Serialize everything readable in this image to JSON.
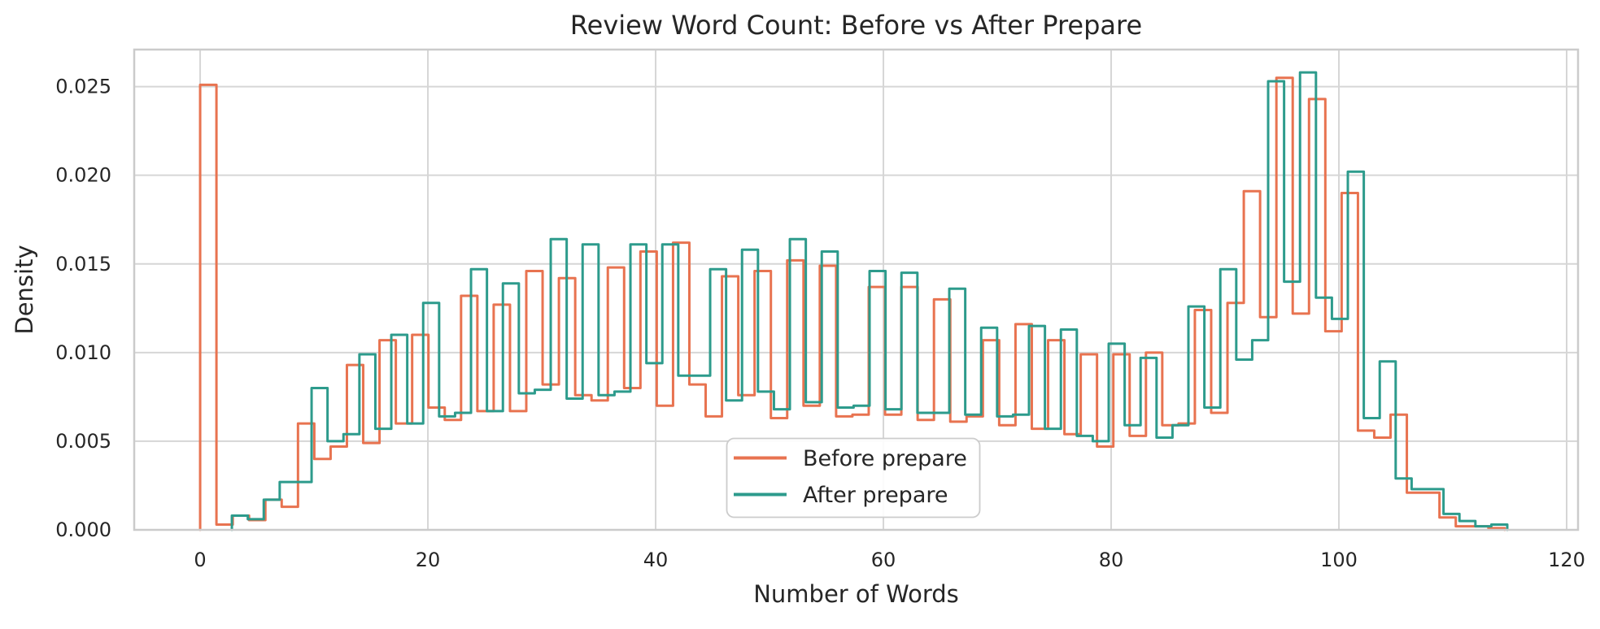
{
  "figure": {
    "title": "Review Word Count: Before vs After Prepare",
    "xlabel": "Number of Words",
    "ylabel": "Density",
    "text_color": "#262626",
    "grid_color": "#d6d6d6",
    "spine_color": "#cbcbcb",
    "background": "#ffffff"
  },
  "chart_data": {
    "type": "step-histogram",
    "title": "Review Word Count: Before vs After Prepare",
    "xlabel": "Number of Words",
    "ylabel": "Density",
    "xlim": [
      -5.79,
      121.0
    ],
    "ylim": [
      0,
      0.02709
    ],
    "grid": true,
    "xticks": [
      {
        "v": 0,
        "label": "0"
      },
      {
        "v": 20,
        "label": "20"
      },
      {
        "v": 40,
        "label": "40"
      },
      {
        "v": 60,
        "label": "60"
      },
      {
        "v": 80,
        "label": "80"
      },
      {
        "v": 100,
        "label": "100"
      },
      {
        "v": 120,
        "label": "120"
      }
    ],
    "yticks": [
      {
        "v": 0.0,
        "label": "0.000"
      },
      {
        "v": 0.005,
        "label": "0.005"
      },
      {
        "v": 0.01,
        "label": "0.010"
      },
      {
        "v": 0.015,
        "label": "0.015"
      },
      {
        "v": 0.02,
        "label": "0.020"
      },
      {
        "v": 0.025,
        "label": "0.025"
      }
    ],
    "legend": {
      "entries": [
        {
          "label": "Before prepare",
          "color": "#E87350"
        },
        {
          "label": "After prepare",
          "color": "#2D9B8C"
        }
      ]
    },
    "series": [
      {
        "name": "Before prepare",
        "color": "#E87350",
        "bin_start": 0.0,
        "bin_width": 1.432,
        "values": [
          0.0251,
          0.0003,
          0.0008,
          0.00055,
          0.0017,
          0.0013,
          0.006,
          0.004,
          0.0047,
          0.0093,
          0.0049,
          0.0107,
          0.006,
          0.011,
          0.0069,
          0.0062,
          0.0132,
          0.0067,
          0.0127,
          0.0067,
          0.0146,
          0.0082,
          0.0142,
          0.0076,
          0.0073,
          0.0148,
          0.008,
          0.0157,
          0.007,
          0.0162,
          0.0082,
          0.0064,
          0.0143,
          0.0076,
          0.0146,
          0.0063,
          0.0152,
          0.007,
          0.0149,
          0.0064,
          0.0065,
          0.0137,
          0.0065,
          0.0137,
          0.0062,
          0.013,
          0.0061,
          0.0064,
          0.0107,
          0.0059,
          0.0116,
          0.0057,
          0.0107,
          0.0054,
          0.0099,
          0.0047,
          0.0099,
          0.0053,
          0.01,
          0.0059,
          0.006,
          0.0124,
          0.0066,
          0.0128,
          0.0191,
          0.012,
          0.0255,
          0.0122,
          0.0243,
          0.0112,
          0.019,
          0.0056,
          0.0052,
          0.0065,
          0.0021,
          0.0021,
          0.0007,
          0.0002,
          0.0002,
          0.0001
        ]
      },
      {
        "name": "After prepare",
        "color": "#2D9B8C",
        "bin_start": 2.786,
        "bin_width": 1.4,
        "values": [
          0.0008,
          0.0006,
          0.0017,
          0.0027,
          0.0027,
          0.008,
          0.005,
          0.0054,
          0.0099,
          0.0057,
          0.011,
          0.006,
          0.0128,
          0.0064,
          0.0066,
          0.0147,
          0.0067,
          0.0139,
          0.0077,
          0.0079,
          0.0164,
          0.0074,
          0.0161,
          0.0076,
          0.0078,
          0.0161,
          0.0094,
          0.0161,
          0.0087,
          0.0087,
          0.0147,
          0.0073,
          0.0158,
          0.0078,
          0.0068,
          0.0164,
          0.0072,
          0.0157,
          0.0069,
          0.007,
          0.0146,
          0.0068,
          0.0145,
          0.0066,
          0.0066,
          0.0136,
          0.0065,
          0.0114,
          0.0064,
          0.0065,
          0.0115,
          0.0057,
          0.0113,
          0.0053,
          0.005,
          0.0105,
          0.0059,
          0.0097,
          0.0052,
          0.0059,
          0.0126,
          0.0069,
          0.0147,
          0.0096,
          0.0107,
          0.0253,
          0.014,
          0.0258,
          0.0131,
          0.0119,
          0.0202,
          0.0063,
          0.0095,
          0.0029,
          0.0023,
          0.0023,
          0.0009,
          0.0005,
          0.0002,
          0.0003
        ]
      }
    ]
  }
}
